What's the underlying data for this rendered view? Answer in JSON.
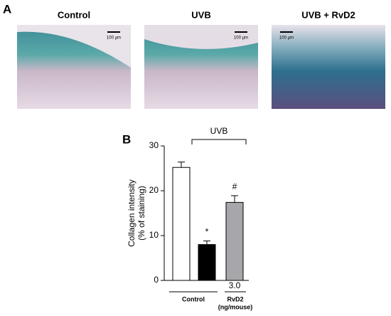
{
  "panel_a": {
    "label": "A",
    "images": [
      {
        "title": "Control",
        "scale_bar": "100 µm"
      },
      {
        "title": "UVB",
        "scale_bar": "100 µm"
      },
      {
        "title": "UVB + RvD2",
        "scale_bar": "100 µm"
      }
    ]
  },
  "chart_data": {
    "type": "bar",
    "panel_label": "B",
    "y_label": [
      "Collagen intensity",
      "(% of staining)"
    ],
    "categories": [
      null,
      null,
      "3.0"
    ],
    "values": [
      25.2,
      8.0,
      17.4
    ],
    "errors": [
      1.2,
      0.8,
      1.5
    ],
    "colors": [
      "#ffffff",
      "#000000",
      "#a7a7ab"
    ],
    "value_annotations": [
      null,
      "*",
      "#"
    ],
    "bracket_label": "UVB",
    "group_labels": [
      "Control",
      [
        "RvD2",
        "(ng/mouse)"
      ]
    ],
    "ylim": [
      0,
      30
    ],
    "yticks": [
      0,
      10,
      20,
      30
    ]
  }
}
